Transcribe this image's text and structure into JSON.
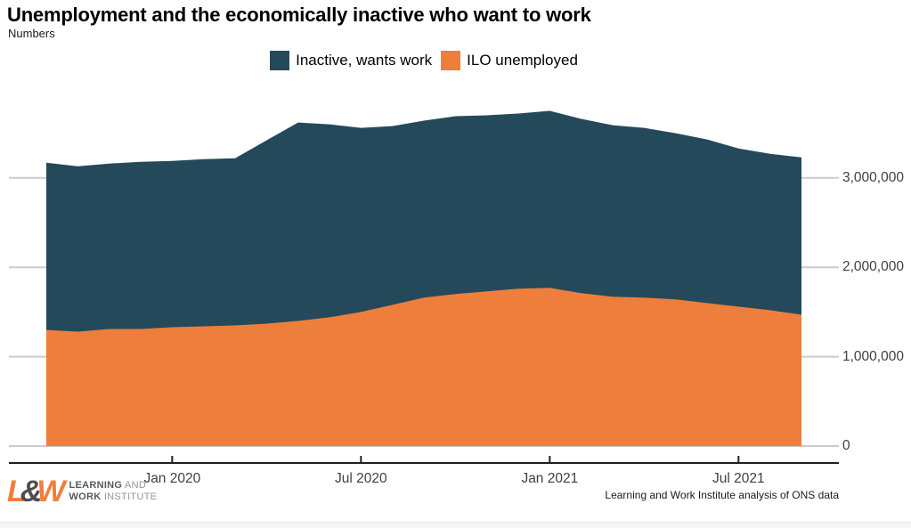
{
  "header": {
    "title": "Unemployment and the economically inactive who want to work",
    "subtitle": "Numbers"
  },
  "legend": [
    {
      "label": "Inactive, wants work",
      "color": "#24495b"
    },
    {
      "label": "ILO unemployed",
      "color": "#ee7e3b"
    }
  ],
  "chart_data": {
    "type": "area",
    "stacked": true,
    "title": "Unemployment and the economically inactive who want to work",
    "subtitle": "Numbers",
    "x": [
      "Sep 2019",
      "Oct 2019",
      "Nov 2019",
      "Dec 2019",
      "Jan 2020",
      "Feb 2020",
      "Mar 2020",
      "Apr 2020",
      "May 2020",
      "Jun 2020",
      "Jul 2020",
      "Aug 2020",
      "Sep 2020",
      "Oct 2020",
      "Nov 2020",
      "Dec 2020",
      "Jan 2021",
      "Feb 2021",
      "Mar 2021",
      "Apr 2021",
      "May 2021",
      "Jun 2021",
      "Jul 2021",
      "Aug 2021",
      "Sep 2021"
    ],
    "series": [
      {
        "name": "ILO unemployed",
        "color": "#ee7e3b",
        "values": [
          1300000,
          1280000,
          1310000,
          1310000,
          1330000,
          1340000,
          1350000,
          1370000,
          1400000,
          1440000,
          1500000,
          1580000,
          1660000,
          1700000,
          1730000,
          1760000,
          1770000,
          1710000,
          1670000,
          1660000,
          1640000,
          1600000,
          1560000,
          1520000,
          1470000
        ]
      },
      {
        "name": "Inactive, wants work",
        "color": "#24495b",
        "values": [
          1870000,
          1850000,
          1850000,
          1870000,
          1860000,
          1870000,
          1870000,
          2050000,
          2220000,
          2160000,
          2060000,
          2000000,
          1980000,
          1990000,
          1970000,
          1960000,
          1980000,
          1950000,
          1920000,
          1900000,
          1860000,
          1830000,
          1770000,
          1750000,
          1760000
        ]
      }
    ],
    "y_ticks": [
      {
        "value": 3000000,
        "label": "3,000,000"
      },
      {
        "value": 2000000,
        "label": "2,000,000"
      },
      {
        "value": 1000000,
        "label": "1,000,000"
      },
      {
        "value": 0,
        "label": "0"
      }
    ],
    "x_ticks": [
      {
        "index": 4,
        "label": "Jan 2020"
      },
      {
        "index": 10,
        "label": "Jul 2020"
      },
      {
        "index": 16,
        "label": "Jan 2021"
      },
      {
        "index": 22,
        "label": "Jul 2021"
      }
    ],
    "ylim": [
      0,
      3870000
    ],
    "grid": true,
    "legend_position": "top-center",
    "gridline_color": "#cccccc",
    "axis_color": "#231f20"
  },
  "footer": {
    "source": "Learning and Work Institute analysis of ONS data",
    "logo": {
      "mark_l": "L",
      "mark_amp": "&",
      "mark_w": "W",
      "line1_bold": "LEARNING",
      "line1_rest": " AND",
      "line2_bold": "WORK",
      "line2_rest": " INSTITUTE"
    }
  }
}
